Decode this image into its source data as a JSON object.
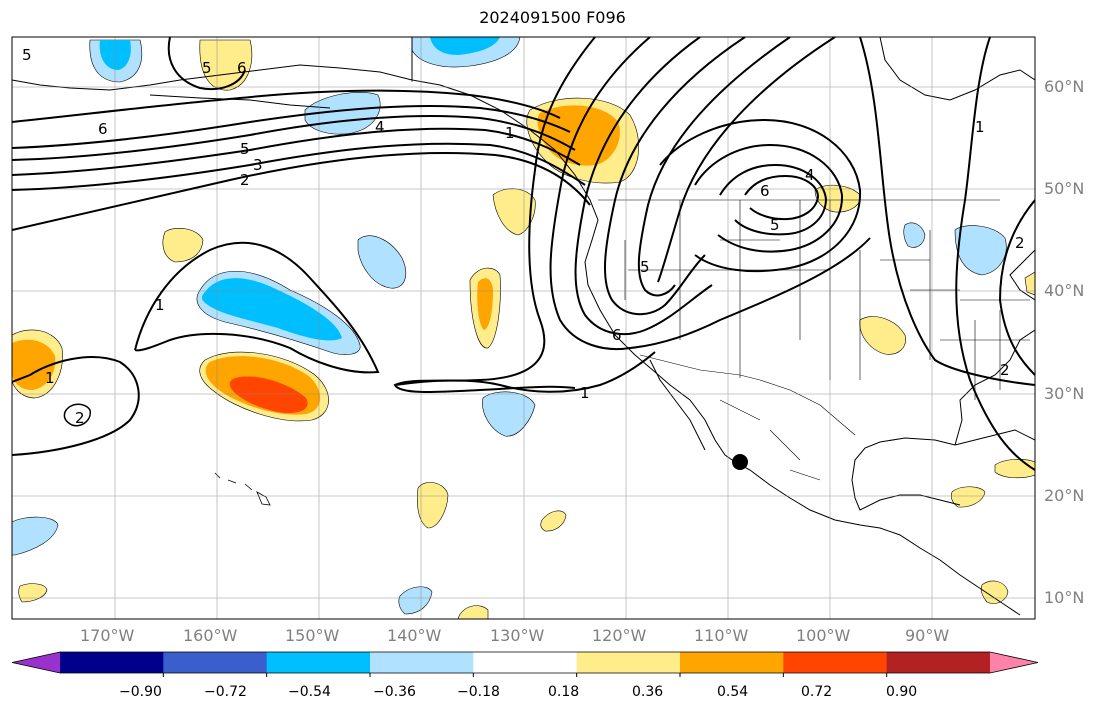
{
  "title": "2024091500 F096",
  "map": {
    "lon_ticks": [
      "170°W",
      "160°W",
      "150°W",
      "140°W",
      "130°W",
      "120°W",
      "110°W",
      "100°W",
      "90°W"
    ],
    "lat_ticks": [
      "60°N",
      "50°N",
      "40°N",
      "30°N",
      "20°N",
      "10°N"
    ],
    "contour_labels": [
      "6",
      "5",
      "3",
      "2",
      "4",
      "1",
      "2",
      "6",
      "5",
      "6",
      "5",
      "5",
      "1",
      "1",
      "2",
      "6",
      "5",
      "1",
      "4",
      "1",
      "2"
    ],
    "marker": "station-dot"
  },
  "colorbar": {
    "tick_labels": [
      "−0.90",
      "−0.72",
      "−0.54",
      "−0.36",
      "−0.18",
      "0.18",
      "0.36",
      "0.54",
      "0.72",
      "0.90"
    ],
    "colors": [
      "#9932cc",
      "#00008b",
      "#3a5fcd",
      "#00bfff",
      "#b0e2ff",
      "#ffffff",
      "#ffec8b",
      "#ffa500",
      "#ff4500",
      "#b22222",
      "#ff82ab"
    ],
    "extend": "both"
  }
}
